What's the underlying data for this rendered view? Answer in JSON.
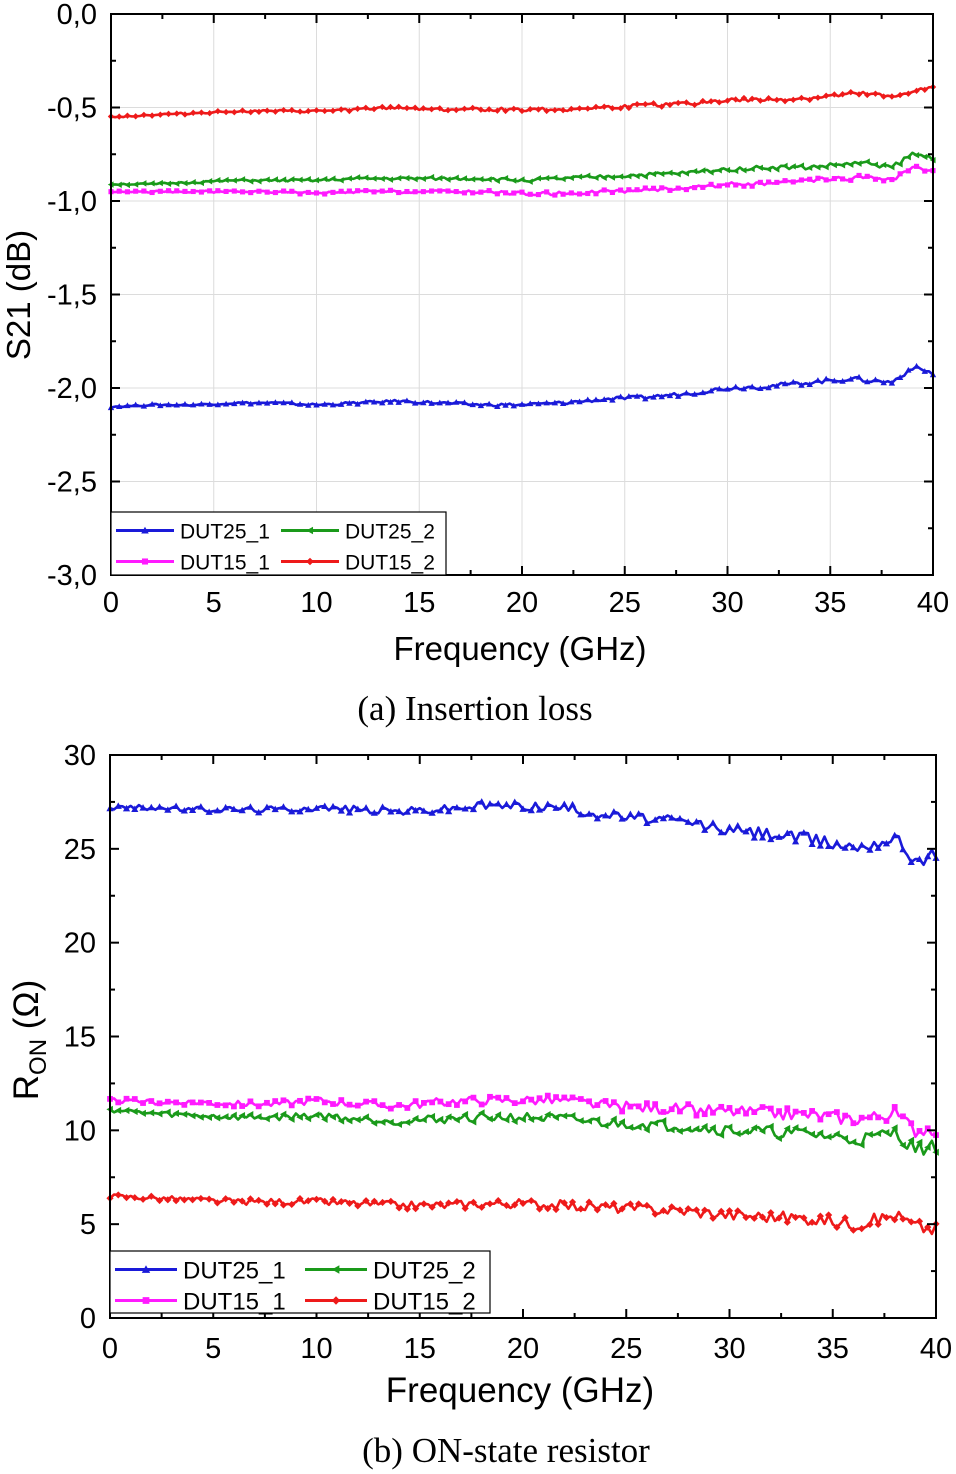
{
  "chart_data": [
    {
      "type": "line",
      "xlabel": "Frequency (GHz)",
      "ylabel": "S21 (dB)",
      "caption": "(a) Insertion loss",
      "xlim": [
        0,
        40
      ],
      "ylim": [
        -3.0,
        0.0
      ],
      "xticks": [
        "0",
        "5",
        "10",
        "15",
        "20",
        "25",
        "30",
        "35",
        "40"
      ],
      "yticks": [
        "0,0",
        "-0,5",
        "-1,0",
        "-1,5",
        "-2,0",
        "-2,5",
        "-3,0"
      ],
      "grid": true,
      "legend": "bottom-left",
      "x": [
        0,
        2,
        4,
        6,
        8,
        10,
        12,
        14,
        16,
        18,
        20,
        22,
        24,
        26,
        28,
        30,
        32,
        34,
        36,
        37,
        38,
        39,
        40
      ],
      "series": [
        {
          "name": "DUT25_1",
          "color": "#1a1ad9",
          "marker": "triangle-up",
          "values": [
            -2.1,
            -2.09,
            -2.09,
            -2.08,
            -2.08,
            -2.09,
            -2.08,
            -2.07,
            -2.08,
            -2.09,
            -2.09,
            -2.08,
            -2.06,
            -2.05,
            -2.03,
            -2.0,
            -1.99,
            -1.97,
            -1.95,
            -1.96,
            -1.97,
            -1.89,
            -1.92
          ]
        },
        {
          "name": "DUT25_2",
          "color": "#1a9a1a",
          "marker": "triangle-left",
          "values": [
            -0.91,
            -0.91,
            -0.9,
            -0.89,
            -0.89,
            -0.89,
            -0.88,
            -0.88,
            -0.88,
            -0.88,
            -0.89,
            -0.88,
            -0.87,
            -0.86,
            -0.85,
            -0.83,
            -0.82,
            -0.82,
            -0.8,
            -0.8,
            -0.82,
            -0.75,
            -0.77
          ]
        },
        {
          "name": "DUT15_1",
          "color": "#ff1aff",
          "marker": "square",
          "values": [
            -0.95,
            -0.95,
            -0.95,
            -0.95,
            -0.95,
            -0.96,
            -0.95,
            -0.95,
            -0.95,
            -0.95,
            -0.96,
            -0.96,
            -0.95,
            -0.94,
            -0.93,
            -0.91,
            -0.91,
            -0.89,
            -0.88,
            -0.87,
            -0.89,
            -0.82,
            -0.85
          ]
        },
        {
          "name": "DUT15_2",
          "color": "#ee1a1a",
          "marker": "diamond",
          "values": [
            -0.55,
            -0.54,
            -0.53,
            -0.52,
            -0.52,
            -0.52,
            -0.51,
            -0.5,
            -0.51,
            -0.51,
            -0.51,
            -0.51,
            -0.5,
            -0.49,
            -0.48,
            -0.46,
            -0.46,
            -0.45,
            -0.43,
            -0.43,
            -0.45,
            -0.41,
            -0.4
          ]
        }
      ]
    },
    {
      "type": "line",
      "xlabel": "Frequency (GHz)",
      "ylabel_main": "R",
      "ylabel_sub": "ON",
      "ylabel_unit": " (Ω)",
      "caption": "(b) ON-state resistor",
      "xlim": [
        0,
        40
      ],
      "ylim": [
        0,
        30
      ],
      "xticks": [
        "0",
        "5",
        "10",
        "15",
        "20",
        "25",
        "30",
        "35",
        "40"
      ],
      "yticks": [
        "30",
        "25",
        "20",
        "15",
        "10",
        "5",
        "0"
      ],
      "grid": false,
      "legend": "bottom-left",
      "x": [
        0,
        2,
        4,
        6,
        8,
        10,
        12,
        14,
        16,
        18,
        20,
        22,
        24,
        26,
        28,
        30,
        32,
        34,
        36,
        37,
        38,
        39,
        40
      ],
      "series": [
        {
          "name": "DUT25_1",
          "color": "#1a1ad9",
          "marker": "triangle-up",
          "values": [
            27.2,
            27.2,
            27.1,
            27.1,
            27.1,
            27.2,
            27.1,
            27.0,
            27.1,
            27.3,
            27.3,
            27.2,
            26.8,
            26.6,
            26.4,
            26.0,
            25.8,
            25.5,
            25.1,
            25.3,
            25.6,
            24.4,
            24.7
          ]
        },
        {
          "name": "DUT25_2",
          "color": "#1a9a1a",
          "marker": "triangle-left",
          "values": [
            11.1,
            10.9,
            10.8,
            10.7,
            10.7,
            10.8,
            10.6,
            10.5,
            10.6,
            10.7,
            10.7,
            10.6,
            10.4,
            10.3,
            10.2,
            10.0,
            9.9,
            9.8,
            9.5,
            9.6,
            9.9,
            9.0,
            9.1
          ]
        },
        {
          "name": "DUT15_1",
          "color": "#ff1aff",
          "marker": "square",
          "values": [
            11.6,
            11.5,
            11.5,
            11.4,
            11.4,
            11.6,
            11.4,
            11.3,
            11.5,
            11.6,
            11.6,
            11.6,
            11.3,
            11.2,
            11.1,
            11.0,
            10.9,
            10.8,
            10.6,
            10.7,
            10.9,
            10.0,
            10.1
          ]
        },
        {
          "name": "DUT15_2",
          "color": "#ee1a1a",
          "marker": "diamond",
          "values": [
            6.5,
            6.4,
            6.3,
            6.2,
            6.2,
            6.2,
            6.1,
            6.0,
            6.0,
            6.1,
            6.1,
            6.0,
            5.9,
            5.8,
            5.7,
            5.5,
            5.4,
            5.3,
            5.0,
            5.2,
            5.5,
            4.9,
            4.7
          ]
        }
      ]
    }
  ]
}
